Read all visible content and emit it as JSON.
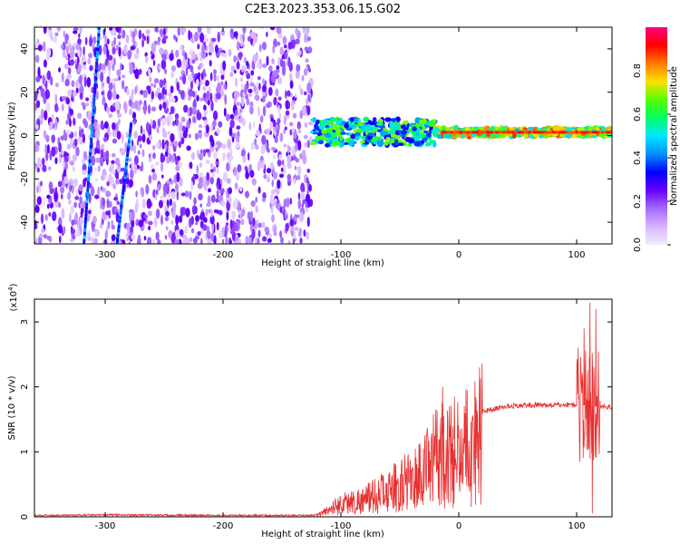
{
  "title": "C2E3.2023.353.06.15.G02",
  "chart_data": [
    {
      "type": "heatmap",
      "xlabel": "Height of straight line (km)",
      "ylabel": "Frequency (Hz)",
      "xlim": [
        -360,
        130
      ],
      "ylim": [
        -50,
        50
      ],
      "xticks": [
        -300,
        -200,
        -100,
        0,
        100
      ],
      "yticks": [
        -40,
        -20,
        0,
        20,
        40
      ],
      "colorbar": {
        "label": "Normalized spectral amplitude",
        "range": [
          0.0,
          1.0
        ],
        "ticks": [
          "0.0",
          "0.2",
          "0.4",
          "0.6",
          "0.8"
        ],
        "tick_values": [
          0.0,
          0.2,
          0.4,
          0.6,
          0.8
        ],
        "colors": [
          "#f0f0ff",
          "#d8b4ff",
          "#a36bff",
          "#6a00ff",
          "#0000ff",
          "#0090ff",
          "#00e5ff",
          "#00ff66",
          "#55ff00",
          "#ffe000",
          "#ff7a00",
          "#ff0000",
          "#ff0080"
        ]
      },
      "features": [
        {
          "name": "noise field",
          "x_range": [
            -360,
            -125
          ],
          "f_range": [
            -50,
            50
          ],
          "level": 0.15
        },
        {
          "name": "signal band",
          "x_range": [
            -125,
            130
          ],
          "center_hz": 1.5,
          "level": 0.6
        },
        {
          "name": "drifting line 1",
          "x": [
            -318,
            -305
          ],
          "f": [
            -50,
            50
          ],
          "level": 0.35
        },
        {
          "name": "drifting line 2",
          "x": [
            -290,
            -278
          ],
          "f": [
            -50,
            5
          ],
          "level": 0.35
        }
      ]
    },
    {
      "type": "line",
      "xlabel": "Height of straight line (km)",
      "ylabel": "SNR (10 * v/v)",
      "scale_label": "(x10",
      "scale_exponent": "4",
      "scale_suffix": ")",
      "xlim": [
        -360,
        130
      ],
      "ylim": [
        0,
        3.35
      ],
      "xticks": [
        -300,
        -200,
        -100,
        0,
        100
      ],
      "yticks": [
        0,
        1,
        2,
        3
      ],
      "color": "#e83030",
      "profile": {
        "x": [
          -360,
          -300,
          -200,
          -130,
          -120,
          -100,
          -80,
          -60,
          -40,
          -25,
          -15,
          -10,
          0,
          10,
          20,
          40,
          60,
          80,
          100,
          105,
          110,
          115,
          120,
          130
        ],
        "y": [
          0.02,
          0.03,
          0.02,
          0.02,
          0.03,
          0.25,
          0.32,
          0.5,
          0.7,
          0.95,
          1.3,
          1.15,
          1.22,
          1.45,
          1.62,
          1.7,
          1.72,
          1.72,
          1.73,
          1.72,
          1.7,
          1.7,
          1.7,
          1.69
        ]
      },
      "spikes": [
        {
          "x": -14,
          "y": 2.0
        },
        {
          "x": -4,
          "y": 1.85
        },
        {
          "x": 106,
          "y": 2.9
        },
        {
          "x": 111,
          "y": 3.3
        },
        {
          "x": 116,
          "y": 3.2
        },
        {
          "x": 113,
          "y": 0.05
        }
      ]
    }
  ]
}
